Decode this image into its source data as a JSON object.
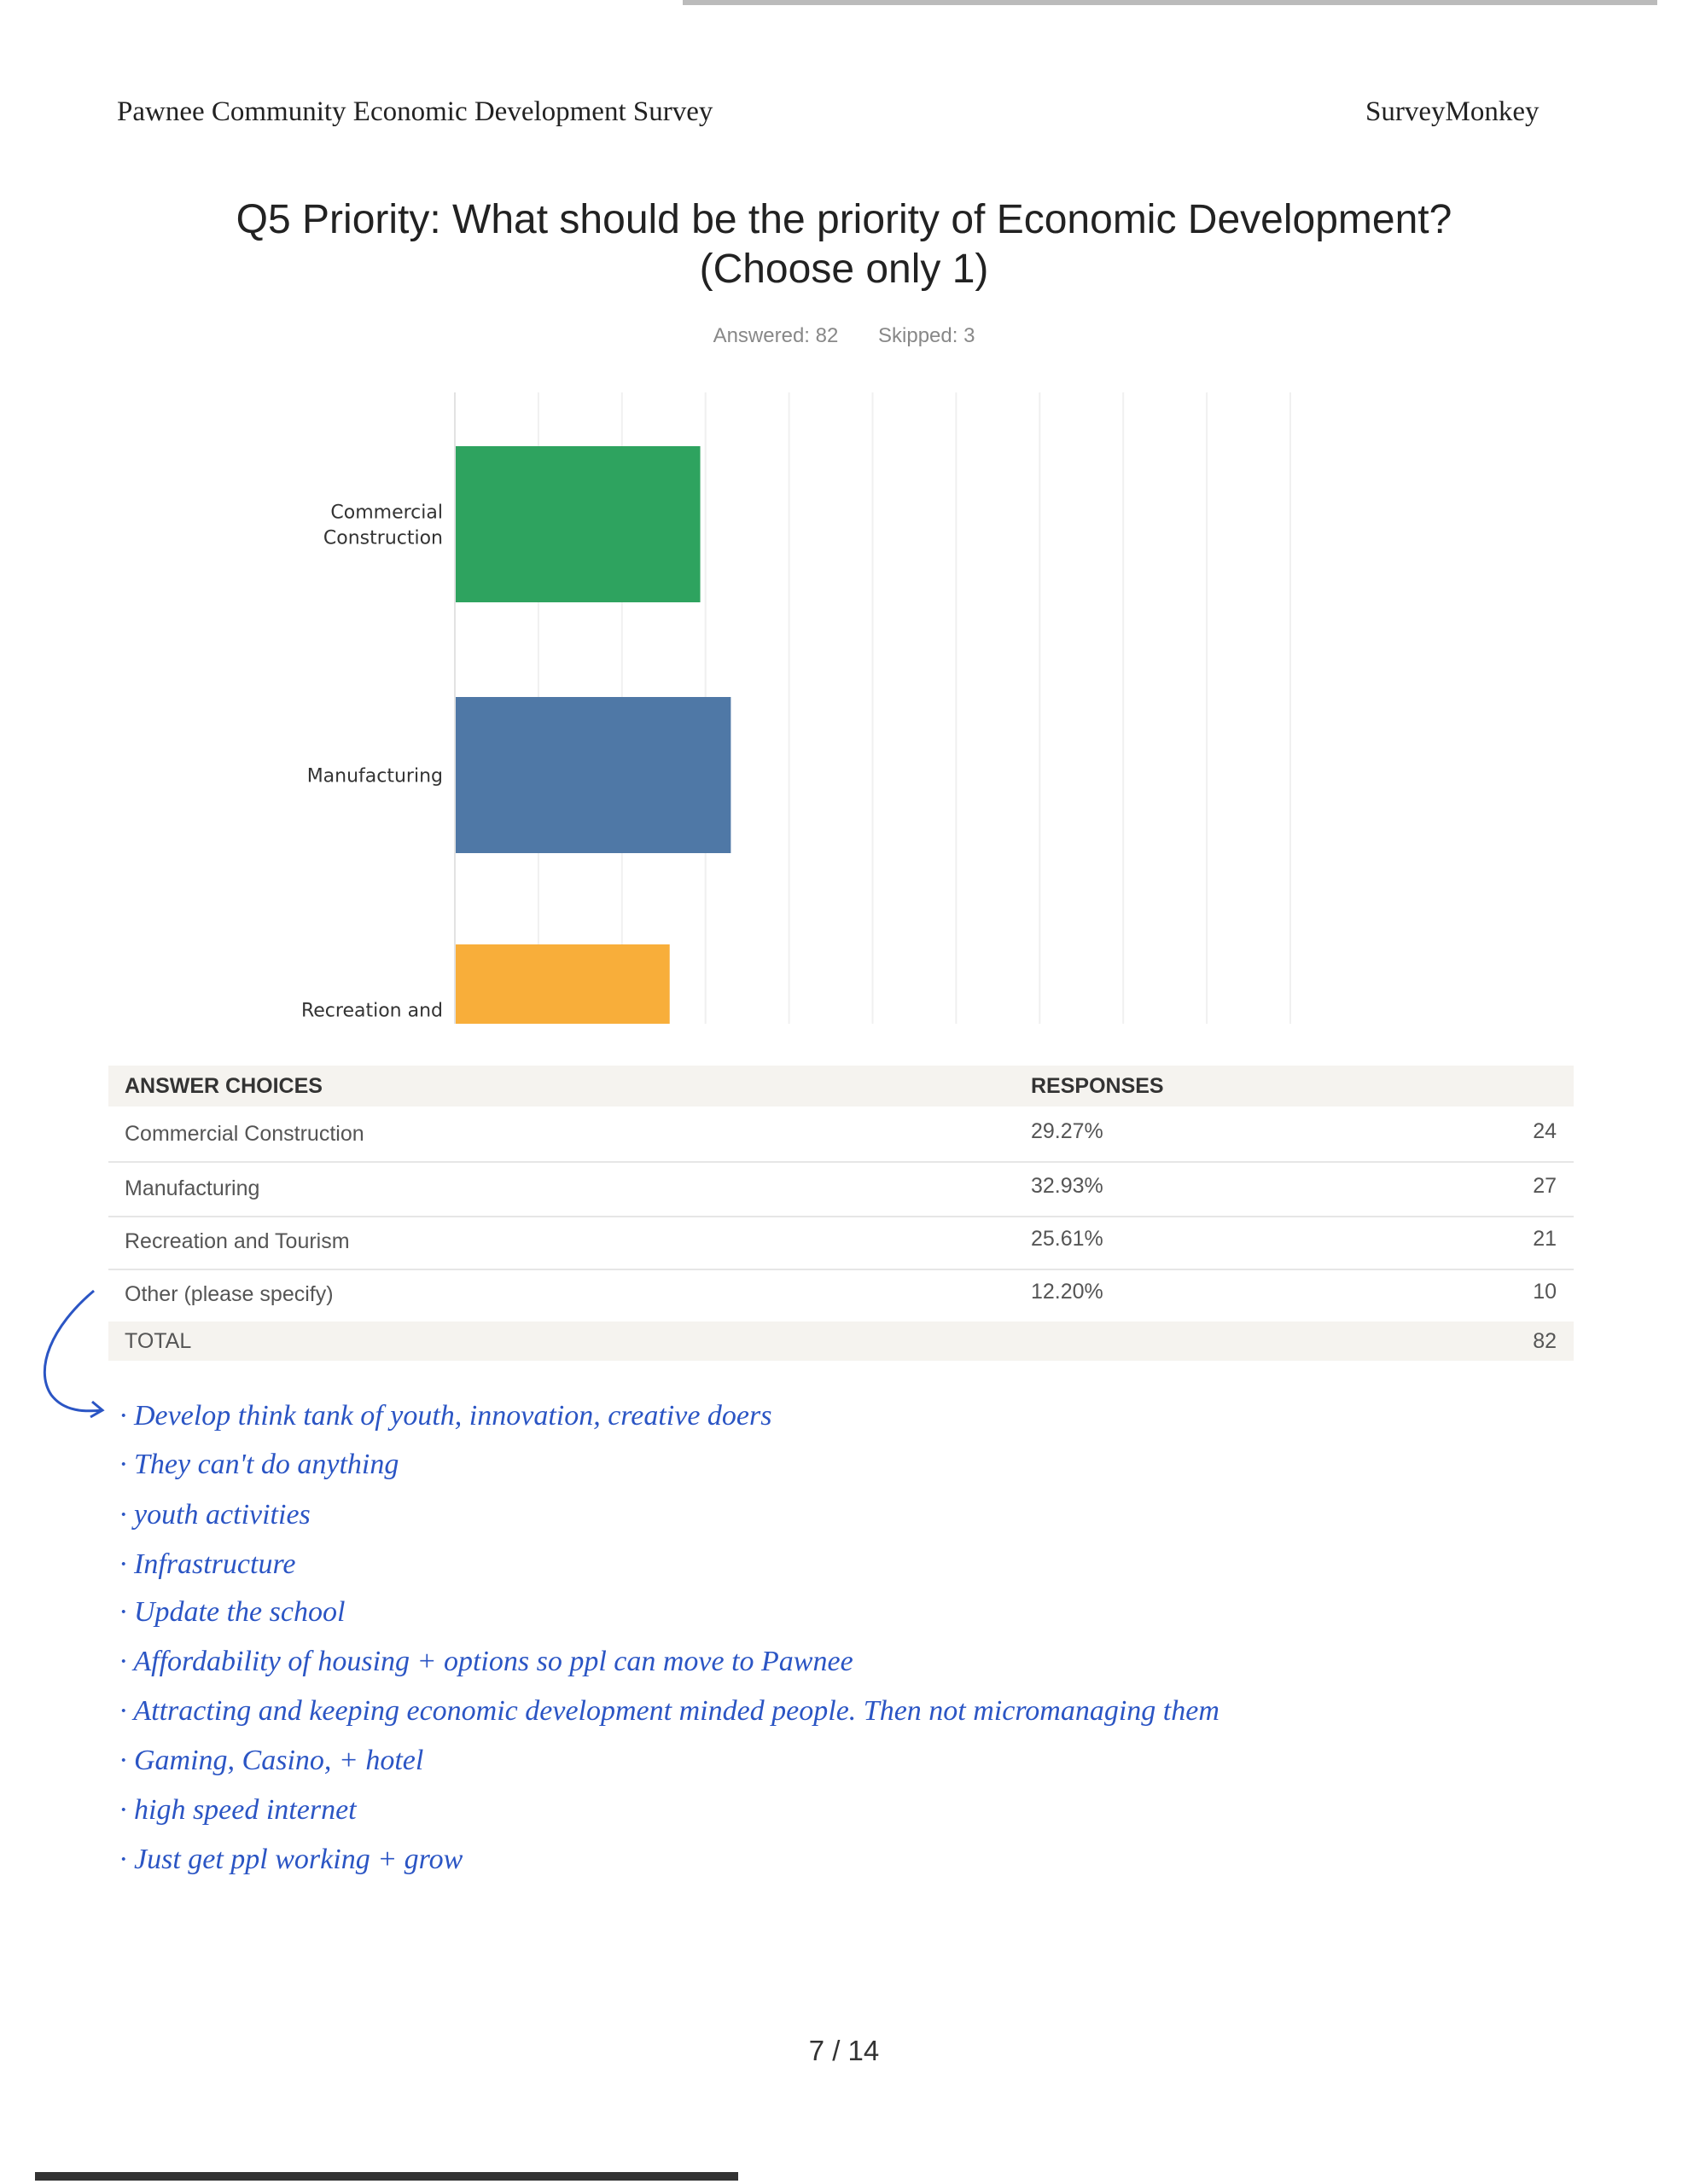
{
  "header": {
    "survey_title": "Pawnee Community Economic Development Survey",
    "brand": "SurveyMonkey"
  },
  "question": {
    "title_line1": "Q5 Priority:  What should be the priority of Economic Development?",
    "title_line2": "(Choose only 1)",
    "answered": "Answered: 82",
    "skipped": "Skipped: 3"
  },
  "chart_data": {
    "type": "bar",
    "orientation": "horizontal",
    "categories": [
      [
        "Commercial",
        "Construction"
      ],
      [
        "Manufacturing"
      ],
      [
        "Recreation and",
        "Tourism"
      ],
      [
        "Other (please",
        "specify)"
      ]
    ],
    "values": [
      29.27,
      32.93,
      25.61,
      12.2
    ],
    "colors": [
      "#2ea35f",
      "#4f78a6",
      "#f8ae3a",
      "#6db7c4"
    ],
    "xlim": [
      0,
      100
    ],
    "xticks": [
      "0%",
      "10%",
      "20%",
      "30%",
      "40%",
      "50%",
      "60%",
      "70%",
      "80%",
      "90%",
      "100%"
    ],
    "grid": true
  },
  "table": {
    "headers": {
      "choices": "ANSWER CHOICES",
      "responses": "RESPONSES"
    },
    "rows": [
      {
        "choice": "Commercial Construction",
        "percent": "29.27%",
        "count": "24"
      },
      {
        "choice": "Manufacturing",
        "percent": "32.93%",
        "count": "27"
      },
      {
        "choice": "Recreation and Tourism",
        "percent": "25.61%",
        "count": "21"
      },
      {
        "choice": "Other (please specify)",
        "percent": "12.20%",
        "count": "10"
      }
    ],
    "total": {
      "label": "TOTAL",
      "count": "82"
    }
  },
  "handwritten_notes": [
    "Develop think tank of youth, innovation, creative doers",
    "They can't do anything",
    "youth activities",
    "Infrastructure",
    "Update the school",
    "Affordability of housing + options so ppl can move to Pawnee",
    "Attracting and keeping economic development minded people. Then not micromanaging them",
    "Gaming, Casino, + hotel",
    "high speed internet",
    "Just get ppl working + grow"
  ],
  "footer": {
    "page": "7 / 14"
  }
}
